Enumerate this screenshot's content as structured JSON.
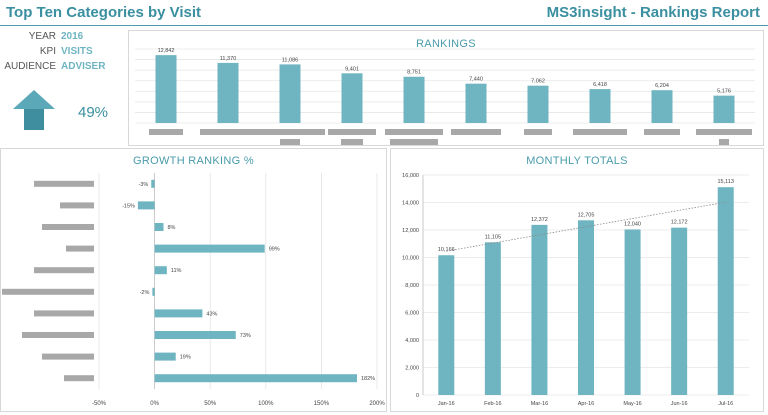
{
  "header": {
    "title": "Top Ten Categories by Visit",
    "report_title": "MS3insight - Rankings Report"
  },
  "filters": [
    {
      "label": "YEAR",
      "value": "2016"
    },
    {
      "label": "KPI",
      "value": "VISITS"
    },
    {
      "label": "AUDIENCE",
      "value": "ADVISER"
    }
  ],
  "trend": {
    "direction": "up",
    "icon": "up-arrow-icon",
    "percent_text": "49%"
  },
  "colors": {
    "accent": "#6fb5c1",
    "title": "#3a8fa0",
    "redacted": "#a8a8a8"
  },
  "chart_data": [
    {
      "type": "bar",
      "title": "RANKINGS",
      "values": [
        12842,
        11370,
        11086,
        9401,
        8751,
        7440,
        7062,
        6418,
        6204,
        5176
      ],
      "value_labels": [
        "12,842",
        "11,370",
        "11,086",
        "9,401",
        "8,751",
        "7,440",
        "7,062",
        "6,418",
        "6,204",
        "5,176"
      ],
      "ylim": [
        0,
        14000
      ],
      "grid": true,
      "category_labels_redacted": true
    },
    {
      "type": "bar",
      "orientation": "horizontal",
      "title": "GROWTH RANKING %",
      "values": [
        -3,
        -15,
        8,
        99,
        11,
        -2,
        43,
        73,
        19,
        182
      ],
      "value_labels": [
        "-3%",
        "-15%",
        "8%",
        "99%",
        "11%",
        "-2%",
        "43%",
        "73%",
        "19%",
        "182%"
      ],
      "xlim": [
        -50,
        200
      ],
      "xticks": [
        "-50%",
        "0%",
        "50%",
        "100%",
        "150%",
        "200%"
      ],
      "grid": true,
      "category_labels_redacted": true
    },
    {
      "type": "bar",
      "title": "MONTHLY TOTALS",
      "categories": [
        "Jan-16",
        "Feb-16",
        "Mar-16",
        "Apr-16",
        "May-16",
        "Jun-16",
        "Jul-16"
      ],
      "values": [
        10166,
        11105,
        12372,
        12705,
        12040,
        12172,
        15113
      ],
      "value_labels": [
        "10,166",
        "11,105",
        "12,372",
        "12,705",
        "12,040",
        "12,172",
        "15,113"
      ],
      "ylim": [
        0,
        16000
      ],
      "yticks": [
        "0",
        "2,000",
        "4,000",
        "6,000",
        "8,000",
        "10,000",
        "12,000",
        "14,000",
        "16,000"
      ],
      "trendline": "linear",
      "grid": true
    }
  ]
}
